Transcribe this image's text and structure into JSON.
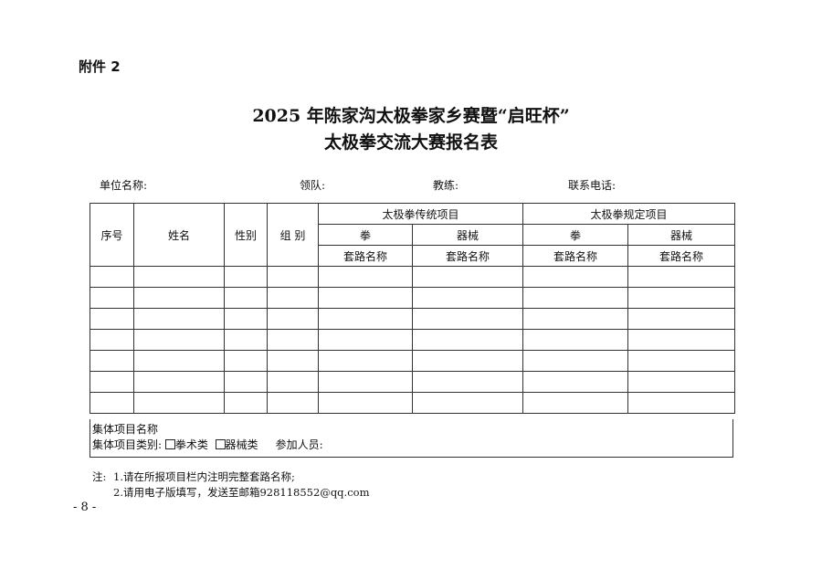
{
  "attachment_label": "附件 2",
  "title_line1": "2025 年陈家沟太极拳家乡赛暨“启旺杯”",
  "title_line2": "太极拳交流大赛报名表",
  "fields": {
    "unit": "单位名称:",
    "leader": "领队:",
    "coach": "教练:",
    "phone": "联系电话:"
  },
  "table": {
    "headers": {
      "seq": "序号",
      "name": "姓名",
      "gender": "性别",
      "group": "组 别",
      "traditional": "太极拳传统项目",
      "standard": "太极拳规定项目",
      "fist": "拳",
      "weapon": "器械",
      "routine": "套路名称"
    },
    "empty_rows": 7
  },
  "group_section": {
    "name_label": "集体项目名称",
    "category_label": "集体项目类别:",
    "option_fist": "拳术类",
    "option_weapon": "器械类",
    "participants_label": "参加人员:"
  },
  "notes": {
    "prefix": "注:",
    "note1": "1.请在所报项目栏内注明完整套路名称;",
    "note2": "2.请用电子版填写，发送至邮箱928118552@qq.com"
  },
  "page_number": "- 8 -"
}
